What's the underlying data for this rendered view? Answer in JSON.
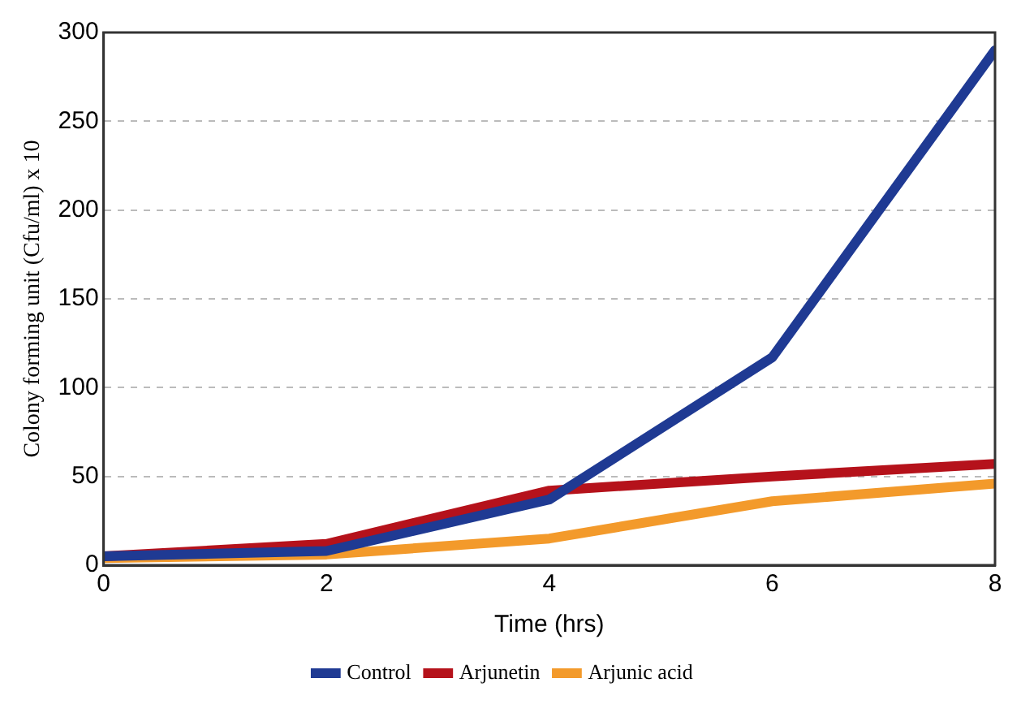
{
  "chart_data": {
    "type": "line",
    "xlabel": "Time (hrs)",
    "ylabel": "Colony forming unit (Cfu/ml) x 10",
    "x": [
      0,
      2,
      4,
      6,
      8
    ],
    "xlim": [
      0,
      8
    ],
    "xticks": [
      0,
      2,
      4,
      6,
      8
    ],
    "ylim": [
      0,
      300
    ],
    "yticks": [
      0,
      50,
      100,
      150,
      200,
      250,
      300
    ],
    "series": [
      {
        "name": "Control",
        "color": "#1f3a93",
        "values": [
          5,
          8,
          37,
          117,
          290
        ]
      },
      {
        "name": "Arjunetin",
        "color": "#b5121b",
        "values": [
          5,
          12,
          42,
          50,
          57
        ]
      },
      {
        "name": "Arjunic acid",
        "color": "#f39a2b",
        "values": [
          4,
          6,
          15,
          36,
          46
        ]
      }
    ],
    "grid": "y",
    "legend": "bottom",
    "marker": "none",
    "line_style": "solid"
  }
}
